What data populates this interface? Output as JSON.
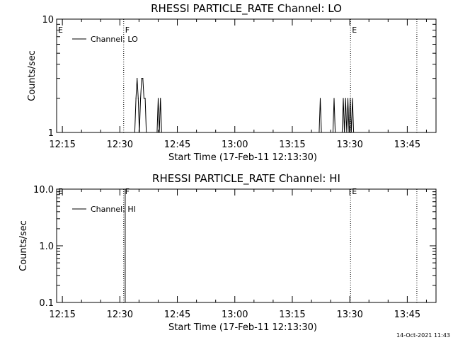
{
  "chart_data": [
    {
      "type": "line",
      "title": "RHESSI PARTICLE_RATE Channel: LO",
      "xlabel": "Start Time (17-Feb-11 12:13:30)",
      "ylabel": "Counts/sec",
      "xaxis_ticks": [
        "12:15",
        "12:30",
        "12:45",
        "13:00",
        "13:15",
        "13:30",
        "13:45"
      ],
      "xaxis_tick_minutes": [
        15,
        30,
        45,
        60,
        75,
        90,
        105
      ],
      "xlim_minutes": [
        13.5,
        112.5
      ],
      "yscale": "log",
      "ylim": [
        1,
        10
      ],
      "yaxis_ticks": [
        "1",
        "10"
      ],
      "yaxis_tick_values": [
        1,
        10
      ],
      "legend": {
        "entries": [
          "Channel: LO"
        ],
        "placement": "top-left"
      },
      "event_markers": [
        {
          "label": "E",
          "x_minute": 13.5,
          "style": "solid"
        },
        {
          "label": "F",
          "x_minute": 31.0,
          "style": "dotted"
        },
        {
          "label": "E",
          "x_minute": 90.2,
          "style": "dotted"
        },
        {
          "label": "",
          "x_minute": 107.5,
          "style": "dotted"
        }
      ],
      "series": [
        {
          "name": "Channel: LO",
          "x": [
            33.9,
            34.2,
            34.5,
            34.8,
            35.1,
            35.4,
            35.7,
            36.0,
            36.3,
            36.6,
            36.9,
            37.2,
            39.7,
            40.0,
            40.3,
            40.6,
            40.9,
            82.0,
            82.3,
            82.6,
            85.6,
            85.9,
            86.2,
            88.0,
            88.3,
            88.6,
            88.9,
            89.2,
            89.5,
            89.8,
            90.1,
            90.4,
            90.7,
            91.0
          ],
          "y": [
            1,
            2,
            3,
            2,
            1,
            2,
            3,
            3,
            2,
            2,
            1,
            1,
            1,
            2,
            1,
            2,
            1,
            1,
            2,
            1,
            1,
            2,
            1,
            1,
            2,
            1,
            2,
            1,
            2,
            1,
            2,
            1,
            2,
            1
          ]
        }
      ]
    },
    {
      "type": "line",
      "title": "RHESSI PARTICLE_RATE Channel: HI",
      "xlabel": "Start Time (17-Feb-11 12:13:30)",
      "ylabel": "Counts/sec",
      "xaxis_ticks": [
        "12:15",
        "12:30",
        "12:45",
        "13:00",
        "13:15",
        "13:30",
        "13:45"
      ],
      "xaxis_tick_minutes": [
        15,
        30,
        45,
        60,
        75,
        90,
        105
      ],
      "xlim_minutes": [
        13.5,
        112.5
      ],
      "yscale": "log",
      "ylim": [
        0.1,
        10
      ],
      "yaxis_ticks": [
        "0.1",
        "1.0",
        "10.0"
      ],
      "yaxis_tick_values": [
        0.1,
        1,
        10
      ],
      "legend": {
        "entries": [
          "Channel: HI"
        ],
        "placement": "top-left"
      },
      "event_markers": [
        {
          "label": "E",
          "x_minute": 13.5,
          "style": "solid"
        },
        {
          "label": "F",
          "x_minute": 31.0,
          "style": "dotted"
        },
        {
          "label": "",
          "x_minute": 31.4,
          "style": "solid"
        },
        {
          "label": "E",
          "x_minute": 90.2,
          "style": "dotted"
        },
        {
          "label": "",
          "x_minute": 107.5,
          "style": "dotted"
        }
      ],
      "series": [
        {
          "name": "Channel: HI",
          "x": [],
          "y": []
        }
      ]
    }
  ],
  "footer": {
    "timestamp": "14-Oct-2021 11:43"
  }
}
